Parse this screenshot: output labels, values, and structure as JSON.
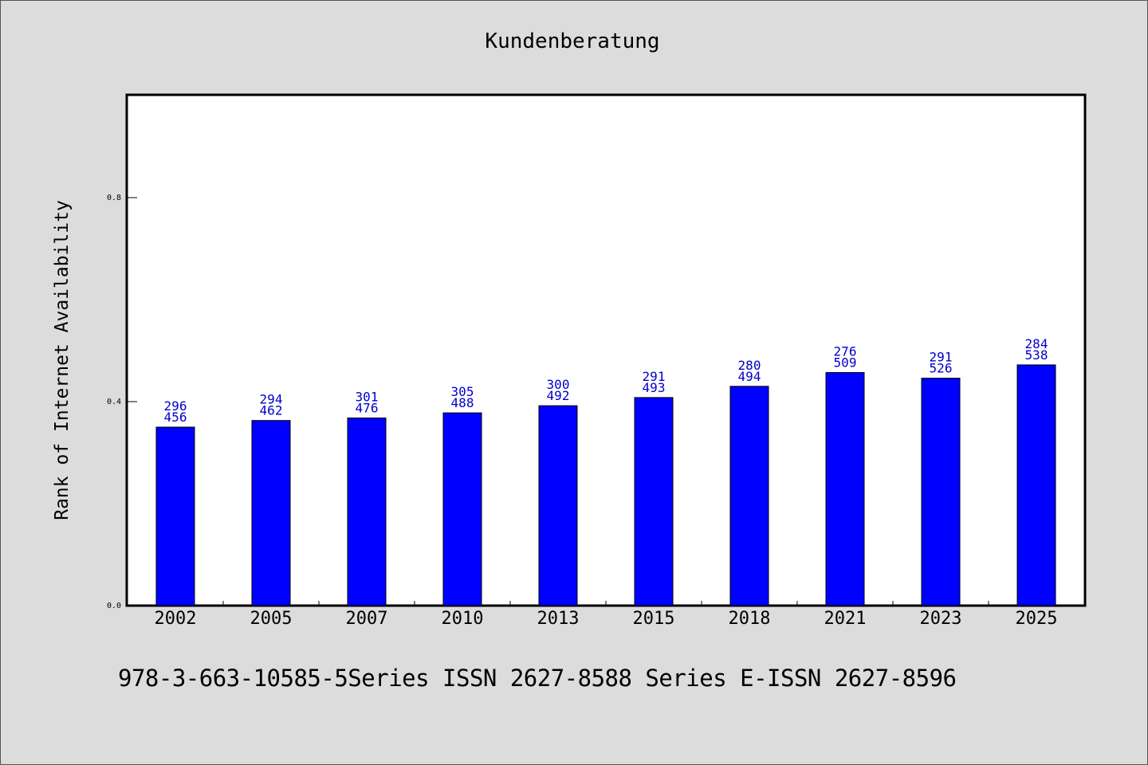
{
  "chart_data": {
    "type": "bar",
    "title": "Kundenberatung",
    "xlabel": "",
    "ylabel": "Rank of Internet Availability",
    "categories": [
      "2002",
      "2005",
      "2007",
      "2010",
      "2013",
      "2015",
      "2018",
      "2021",
      "2023",
      "2025"
    ],
    "values": [
      0.35,
      0.363,
      0.368,
      0.378,
      0.392,
      0.408,
      0.43,
      0.457,
      0.446,
      0.472
    ],
    "labels_top": [
      "296",
      "294",
      "301",
      "305",
      "300",
      "291",
      "280",
      "276",
      "291",
      "284"
    ],
    "labels_bottom": [
      "456",
      "462",
      "476",
      "488",
      "492",
      "493",
      "494",
      "509",
      "526",
      "538"
    ],
    "ylim": [
      0,
      1.0
    ],
    "yticks": [
      0.0,
      0.4,
      0.8
    ],
    "ytick_labels": [
      "0.0",
      "0.4",
      "0.8"
    ],
    "grid": false,
    "colors": {
      "bar": "#0000ff",
      "bar_edge": "#000000",
      "label": "#0000cc",
      "background": "#dcdcdc",
      "plot_bg": "#ffffff"
    }
  },
  "footnote": "978-3-663-10585-5Series ISSN 2627-8588 Series E-ISSN 2627-8596"
}
